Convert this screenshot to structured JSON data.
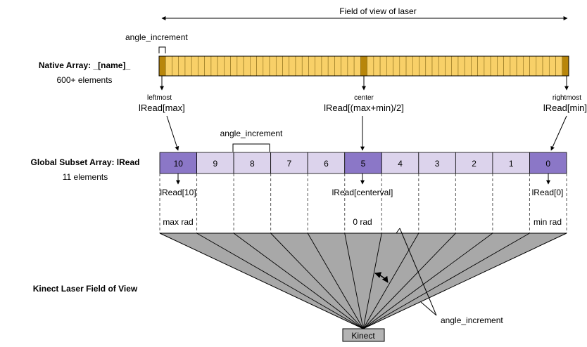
{
  "fov_laser_label": "Field of view of laser",
  "native": {
    "angle_increment_label": "angle_increment",
    "title": "Native Array: _[name]_",
    "count": "600+ elements",
    "colors": {
      "cell": "#f8d068",
      "dark": "#b8860b",
      "edge": "#8a6d1a"
    }
  },
  "markers": {
    "left_small": "leftmost",
    "left_big": "lRead[max]",
    "center_small": "center",
    "center_big": "lRead[(max+min)/2]",
    "right_small": "rightmost",
    "right_big": "lRead[min]"
  },
  "subset": {
    "angle_increment_label": "angle_increment",
    "title": "Global Subset Array: lRead",
    "count": "11 elements",
    "cells": [
      "10",
      "9",
      "8",
      "7",
      "6",
      "5",
      "4",
      "3",
      "2",
      "1",
      "0"
    ],
    "highlight": [
      "10",
      "5",
      "0"
    ],
    "colors": {
      "light": "#dcd3ec",
      "highlight": "#8b77c7"
    }
  },
  "below": {
    "left_read": "lRead[10]",
    "center_read": "lRead[centerval]",
    "right_read": "lRead[0]",
    "left_rad": "max rad",
    "center_rad": "0 rad",
    "right_rad": "min rad"
  },
  "fov": {
    "title": "Kinect Laser Field of View",
    "angle_increment_label": "angle_increment",
    "fill_color": "#a8a8a8"
  },
  "kinect_label": "Kinect"
}
